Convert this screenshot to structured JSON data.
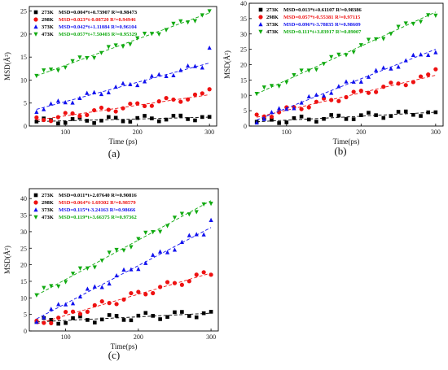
{
  "chart_data": [
    {
      "type": "scatter",
      "panel_label": "(a)",
      "xlabel": "Time (ps)",
      "ylabel": "MSD(Å²)",
      "xlim": [
        50,
        310
      ],
      "ylim": [
        0,
        26
      ],
      "xticks": [
        100,
        200,
        300
      ],
      "yticks": [
        0,
        5,
        10,
        15,
        20,
        25
      ],
      "series": [
        {
          "name": "273K",
          "fit_text": "MSD=0.004*t+0.73907 R²=0.98473",
          "color": "#000000",
          "marker": "square",
          "slope": 0.004,
          "intercept": 0.73907,
          "end_value": 2.0
        },
        {
          "name": "298K",
          "fit_text": "MSD=0.023*t-0.08720 R²=0.94946",
          "color": "#ee1111",
          "marker": "circle",
          "slope": 0.023,
          "intercept": -0.0872,
          "end_value": 8.0
        },
        {
          "name": "373K",
          "fit_text": "MSD=0.042*t+1.11084 R²=0.96104",
          "color": "#1111ee",
          "marker": "triangle-up",
          "slope": 0.042,
          "intercept": 1.11084,
          "end_value": 17.0
        },
        {
          "name": "473K",
          "fit_text": "MSD=0.057*t+7.50403 R²=0.95329",
          "color": "#11aa11",
          "marker": "triangle-down",
          "slope": 0.057,
          "intercept": 7.50403,
          "end_value": 25.0
        }
      ]
    },
    {
      "type": "scatter",
      "panel_label": "(b)",
      "xlabel": "Time(ps)",
      "ylabel": "MSD(Å²)",
      "xlim": [
        50,
        310
      ],
      "ylim": [
        0,
        40
      ],
      "xticks": [
        100,
        200,
        300
      ],
      "yticks": [
        0,
        5,
        10,
        15,
        20,
        25,
        30,
        35,
        40
      ],
      "series": [
        {
          "name": "273K",
          "fit_text": "MSD=0.013*t+0.61107 R²=0.98386",
          "color": "#000000",
          "marker": "square",
          "slope": 0.013,
          "intercept": 0.61107,
          "end_value": 4.5
        },
        {
          "name": "298K",
          "fit_text": "MSD=0.057*t-0.55381 R²=0.97115",
          "color": "#ee1111",
          "marker": "circle",
          "slope": 0.057,
          "intercept": -0.55381,
          "end_value": 18.5
        },
        {
          "name": "373K",
          "fit_text": "MSD=0.096*t-3.78835 R²=0.98609",
          "color": "#1111ee",
          "marker": "triangle-up",
          "slope": 0.096,
          "intercept": -3.78835,
          "end_value": 24.0
        },
        {
          "name": "473K",
          "fit_text": "MSD=0.111*t+3.83917 R²=0.89007",
          "color": "#11aa11",
          "marker": "triangle-down",
          "slope": 0.111,
          "intercept": 3.83917,
          "end_value": 36.0
        }
      ]
    },
    {
      "type": "scatter",
      "panel_label": "(c)",
      "xlabel": "Time(ps)",
      "ylabel": "MSD(Å²)",
      "xlim": [
        50,
        310
      ],
      "ylim": [
        0,
        43
      ],
      "xticks": [
        100,
        200,
        300
      ],
      "yticks": [
        0,
        5,
        10,
        15,
        20,
        25,
        30,
        35,
        40
      ],
      "series": [
        {
          "name": "273K",
          "fit_text": "MSD=0.011*t+2.07640 R²=0.90816",
          "color": "#000000",
          "marker": "square",
          "slope": 0.011,
          "intercept": 2.0764,
          "end_value": 5.8
        },
        {
          "name": "298K",
          "fit_text": "MSD=0.064*t-1.69302 R²=0.98579",
          "color": "#ee1111",
          "marker": "circle",
          "slope": 0.064,
          "intercept": -1.69302,
          "end_value": 17.0
        },
        {
          "name": "373K",
          "fit_text": "MSD=0.115*t-3.24163 R²=0.98666",
          "color": "#1111ee",
          "marker": "triangle-up",
          "slope": 0.115,
          "intercept": -3.24163,
          "end_value": 33.5
        },
        {
          "name": "473K",
          "fit_text": "MSD=0.119*t+3.66375 R²=0.97362",
          "color": "#11aa11",
          "marker": "triangle-down",
          "slope": 0.119,
          "intercept": 3.66375,
          "end_value": 38.5
        }
      ]
    }
  ]
}
